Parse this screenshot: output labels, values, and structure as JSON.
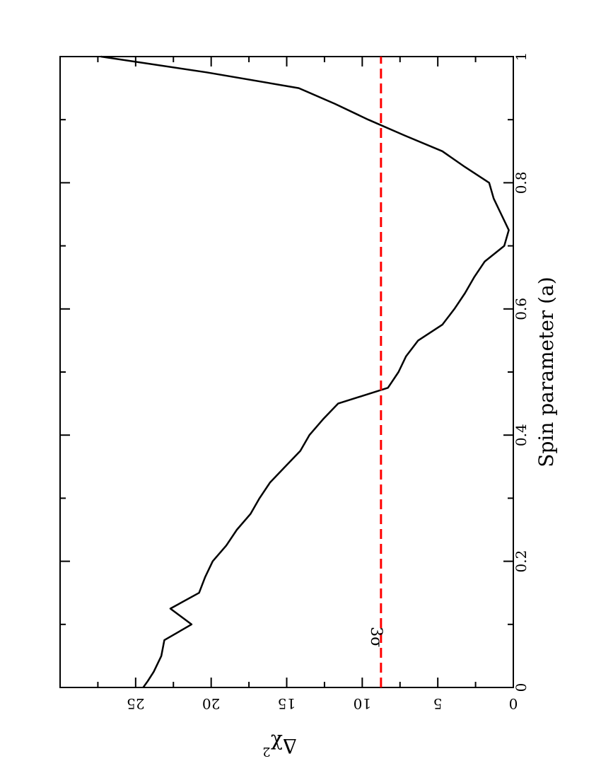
{
  "chart_data": {
    "type": "line",
    "orientation": "rotated-90",
    "xlabel": "Spin parameter (a)",
    "ylabel_base": "Δχ",
    "ylabel_sup": "2",
    "xlim": [
      0,
      1
    ],
    "ylim": [
      0,
      30
    ],
    "x_ticks": [
      {
        "v": 0,
        "label": "0"
      },
      {
        "v": 0.2,
        "label": "0.2"
      },
      {
        "v": 0.4,
        "label": "0.4"
      },
      {
        "v": 0.6,
        "label": "0.6"
      },
      {
        "v": 0.8,
        "label": "0.8"
      },
      {
        "v": 1,
        "label": "1"
      }
    ],
    "x_minor_ticks": [
      0.1,
      0.3,
      0.5,
      0.7,
      0.9
    ],
    "y_ticks": [
      {
        "v": 0,
        "label": "0"
      },
      {
        "v": 5,
        "label": "5"
      },
      {
        "v": 10,
        "label": "10"
      },
      {
        "v": 15,
        "label": "15"
      },
      {
        "v": 20,
        "label": "20"
      },
      {
        "v": 25,
        "label": "25"
      }
    ],
    "series": [
      {
        "color": "#000000",
        "x": [
          0,
          0.01,
          0.025,
          0.05,
          0.075,
          0.1,
          0.125,
          0.15,
          0.175,
          0.2,
          0.225,
          0.25,
          0.275,
          0.3,
          0.325,
          0.35,
          0.375,
          0.4,
          0.425,
          0.45,
          0.475,
          0.5,
          0.525,
          0.55,
          0.575,
          0.6,
          0.625,
          0.65,
          0.675,
          0.7,
          0.725,
          0.75,
          0.775,
          0.8,
          0.825,
          0.85,
          0.875,
          0.9,
          0.925,
          0.95,
          0.975,
          1.0
        ],
        "y": [
          24.5,
          24.2,
          23.8,
          23.3,
          23.1,
          21.3,
          22.7,
          20.8,
          20.4,
          19.9,
          19.0,
          18.3,
          17.4,
          16.8,
          16.1,
          15.1,
          14.1,
          13.5,
          12.6,
          11.6,
          8.3,
          7.6,
          7.1,
          6.3,
          4.7,
          3.9,
          3.2,
          2.6,
          1.9,
          0.6,
          0.3,
          0.8,
          1.3,
          1.6,
          3.2,
          4.7,
          7.2,
          9.6,
          11.8,
          14.2,
          20.3,
          27.3
        ]
      },
      {
        "color": "#ff0000",
        "style": "dashed",
        "x": [
          0,
          1
        ],
        "y": [
          8.76,
          8.76
        ],
        "label": "3σ",
        "label_x": 0.08
      }
    ]
  }
}
